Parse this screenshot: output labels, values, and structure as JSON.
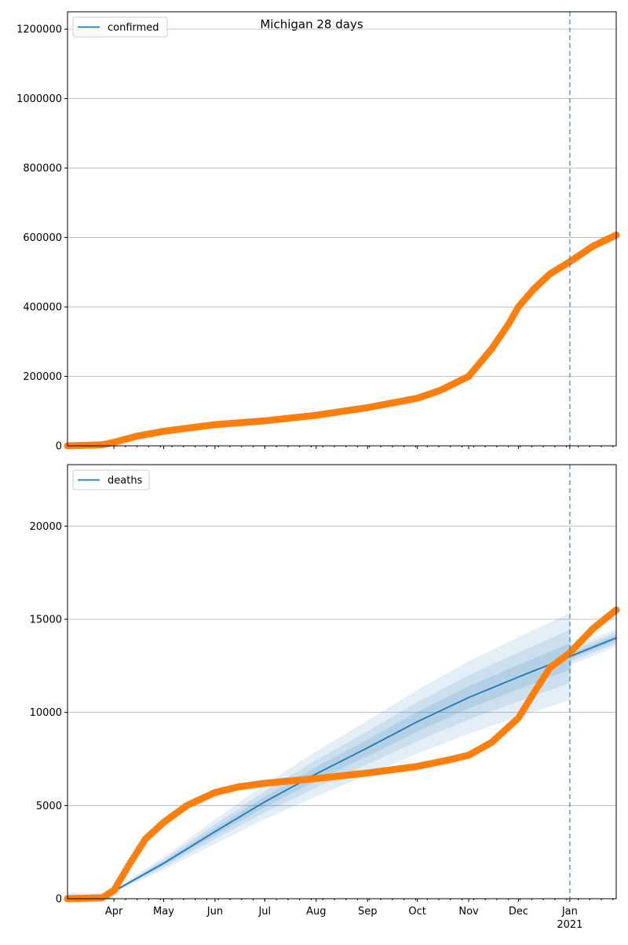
{
  "chart_data": [
    {
      "type": "line",
      "title": "Michigan 28 days",
      "legend": [
        "confirmed"
      ],
      "legend_position": "top-left",
      "ylim": [
        0,
        1250000
      ],
      "yticks": [
        0,
        200000,
        400000,
        600000,
        800000,
        1000000,
        1200000
      ],
      "ytick_labels": [
        "0",
        "200000",
        "400000",
        "600000",
        "800000",
        "1000000",
        "1200000"
      ],
      "xlim": [
        "2020-03-04",
        "2021-01-29"
      ],
      "grid": "y",
      "forecast_start": "2021-01-01",
      "observed": [
        [
          "2020-03-04",
          0
        ],
        [
          "2020-03-25",
          3000
        ],
        [
          "2020-04-01",
          10000
        ],
        [
          "2020-04-15",
          28000
        ],
        [
          "2020-05-01",
          42000
        ],
        [
          "2020-06-01",
          61000
        ],
        [
          "2020-07-01",
          72000
        ],
        [
          "2020-08-01",
          88000
        ],
        [
          "2020-09-01",
          110000
        ],
        [
          "2020-10-01",
          137000
        ],
        [
          "2020-10-15",
          160000
        ],
        [
          "2020-11-01",
          200000
        ],
        [
          "2020-11-15",
          280000
        ],
        [
          "2020-11-25",
          350000
        ],
        [
          "2020-12-01",
          400000
        ],
        [
          "2020-12-10",
          450000
        ],
        [
          "2020-12-20",
          495000
        ],
        [
          "2021-01-01",
          530000
        ],
        [
          "2021-01-15",
          575000
        ],
        [
          "2021-01-29",
          607000
        ]
      ]
    },
    {
      "type": "line",
      "legend": [
        "deaths"
      ],
      "legend_position": "top-left",
      "ylim": [
        0,
        23300
      ],
      "yticks": [
        0,
        5000,
        10000,
        15000,
        20000
      ],
      "ytick_labels": [
        "0",
        "5000",
        "10000",
        "15000",
        "20000"
      ],
      "xlim": [
        "2020-03-04",
        "2021-01-29"
      ],
      "xticks": [
        "2020-04-01",
        "2020-05-01",
        "2020-06-01",
        "2020-07-01",
        "2020-08-01",
        "2020-09-01",
        "2020-10-01",
        "2020-11-01",
        "2020-12-01",
        "2021-01-01"
      ],
      "xtick_labels": [
        "Apr",
        "May",
        "Jun",
        "Jul",
        "Aug",
        "Sep",
        "Oct",
        "Nov",
        "Dec",
        "Jan"
      ],
      "year_label": "2021",
      "grid": "y",
      "forecast_start": "2021-01-01",
      "observed": [
        [
          "2020-03-04",
          0
        ],
        [
          "2020-03-25",
          50
        ],
        [
          "2020-04-01",
          450
        ],
        [
          "2020-04-10",
          1800
        ],
        [
          "2020-04-20",
          3200
        ],
        [
          "2020-05-01",
          4100
        ],
        [
          "2020-05-15",
          5000
        ],
        [
          "2020-06-01",
          5700
        ],
        [
          "2020-06-15",
          6000
        ],
        [
          "2020-07-01",
          6200
        ],
        [
          "2020-08-01",
          6450
        ],
        [
          "2020-09-01",
          6750
        ],
        [
          "2020-10-01",
          7100
        ],
        [
          "2020-10-20",
          7450
        ],
        [
          "2020-11-01",
          7700
        ],
        [
          "2020-11-15",
          8400
        ],
        [
          "2020-12-01",
          9700
        ],
        [
          "2020-12-10",
          11000
        ],
        [
          "2020-12-20",
          12400
        ],
        [
          "2021-01-01",
          13200
        ],
        [
          "2021-01-15",
          14500
        ],
        [
          "2021-01-29",
          15500
        ]
      ],
      "model_median": [
        [
          "2020-03-04",
          0
        ],
        [
          "2020-03-28",
          0
        ],
        [
          "2020-04-01",
          400
        ],
        [
          "2020-05-01",
          1900
        ],
        [
          "2020-06-01",
          3600
        ],
        [
          "2020-07-01",
          5200
        ],
        [
          "2020-08-01",
          6700
        ],
        [
          "2020-09-01",
          8100
        ],
        [
          "2020-10-01",
          9500
        ],
        [
          "2020-11-01",
          10800
        ],
        [
          "2020-12-01",
          11900
        ],
        [
          "2021-01-01",
          13000
        ],
        [
          "2021-01-29",
          14000
        ]
      ],
      "band_halfwidth_fraction": {
        "outer": 0.18,
        "middle": 0.11,
        "inner": 0.055
      },
      "band_halfwidth_fraction_forecast": {
        "outer": 0.035,
        "middle": 0.022,
        "inner": 0.011
      }
    }
  ],
  "colors": {
    "observed": "#ff7f0e",
    "model": "#1f77b4",
    "grid": "#b0b0b0"
  }
}
